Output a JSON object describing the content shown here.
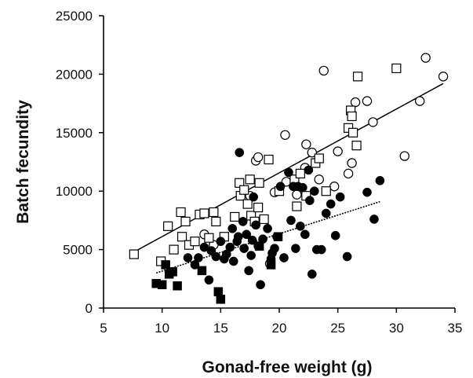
{
  "chart_data": {
    "type": "scatter",
    "title": "",
    "xlabel": "Gonad-free weight (g)",
    "ylabel": "Batch fecundity",
    "xlim": [
      5,
      35
    ],
    "ylim": [
      0,
      25000
    ],
    "xticks": [
      5,
      10,
      15,
      20,
      25,
      30,
      35
    ],
    "yticks": [
      0,
      5000,
      10000,
      15000,
      20000,
      25000
    ],
    "grid": false,
    "legend": "none",
    "series": [
      {
        "marker": "open-circle",
        "color": "#000000",
        "points": [
          [
            13.6,
            6300
          ],
          [
            14.4,
            5400
          ],
          [
            17.5,
            9600
          ],
          [
            18.0,
            12600
          ],
          [
            18.2,
            12900
          ],
          [
            19.2,
            3800
          ],
          [
            19.6,
            9900
          ],
          [
            20.5,
            14800
          ],
          [
            20.6,
            10800
          ],
          [
            22.2,
            12000
          ],
          [
            22.3,
            14000
          ],
          [
            22.8,
            13300
          ],
          [
            23.4,
            11000
          ],
          [
            23.8,
            20300
          ],
          [
            24.7,
            10400
          ],
          [
            25.0,
            13400
          ],
          [
            25.9,
            11500
          ],
          [
            26.2,
            12400
          ],
          [
            26.5,
            17600
          ],
          [
            27.5,
            17700
          ],
          [
            28.0,
            15900
          ],
          [
            30.7,
            13000
          ],
          [
            32.0,
            17700
          ],
          [
            32.5,
            21400
          ],
          [
            34.0,
            19800
          ],
          [
            21.5,
            9700
          ]
        ]
      },
      {
        "marker": "open-square",
        "color": "#000000",
        "points": [
          [
            7.6,
            4600
          ],
          [
            9.9,
            4000
          ],
          [
            10.5,
            7000
          ],
          [
            11.0,
            5000
          ],
          [
            11.6,
            8200
          ],
          [
            11.7,
            6100
          ],
          [
            12.0,
            7400
          ],
          [
            12.3,
            5400
          ],
          [
            12.8,
            5700
          ],
          [
            13.2,
            8000
          ],
          [
            13.6,
            8100
          ],
          [
            14.0,
            6000
          ],
          [
            14.4,
            8200
          ],
          [
            14.6,
            7400
          ],
          [
            15.3,
            6100
          ],
          [
            16.2,
            7800
          ],
          [
            16.6,
            10700
          ],
          [
            16.7,
            9600
          ],
          [
            17.0,
            10100
          ],
          [
            17.3,
            8900
          ],
          [
            17.5,
            11000
          ],
          [
            17.6,
            7900
          ],
          [
            18.2,
            8600
          ],
          [
            18.3,
            10700
          ],
          [
            18.7,
            7600
          ],
          [
            19.1,
            12700
          ],
          [
            20.0,
            10000
          ],
          [
            21.3,
            11000
          ],
          [
            21.5,
            8700
          ],
          [
            21.8,
            11500
          ],
          [
            22.3,
            9600
          ],
          [
            23.1,
            12400
          ],
          [
            23.4,
            12800
          ],
          [
            24.0,
            10000
          ],
          [
            25.9,
            15400
          ],
          [
            26.1,
            16900
          ],
          [
            26.2,
            16400
          ],
          [
            26.3,
            15000
          ],
          [
            26.6,
            13900
          ],
          [
            26.7,
            19800
          ],
          [
            30.0,
            20500
          ],
          [
            17.9,
            7400
          ]
        ]
      },
      {
        "marker": "filled-circle",
        "color": "#000000",
        "points": [
          [
            12.2,
            4300
          ],
          [
            12.8,
            3700
          ],
          [
            13.1,
            4300
          ],
          [
            13.6,
            5200
          ],
          [
            14.0,
            2400
          ],
          [
            14.2,
            4900
          ],
          [
            14.6,
            4400
          ],
          [
            15.0,
            5700
          ],
          [
            15.3,
            4200
          ],
          [
            15.5,
            4600
          ],
          [
            15.8,
            5200
          ],
          [
            16.1,
            4000
          ],
          [
            16.4,
            5700
          ],
          [
            16.5,
            6100
          ],
          [
            16.6,
            13300
          ],
          [
            16.9,
            7400
          ],
          [
            17.0,
            5100
          ],
          [
            17.2,
            6300
          ],
          [
            17.4,
            3200
          ],
          [
            17.6,
            4500
          ],
          [
            17.8,
            9500
          ],
          [
            18.0,
            7100
          ],
          [
            18.2,
            5300
          ],
          [
            18.4,
            2000
          ],
          [
            18.6,
            5900
          ],
          [
            19.0,
            6800
          ],
          [
            19.4,
            4700
          ],
          [
            19.6,
            5100
          ],
          [
            19.8,
            6100
          ],
          [
            20.1,
            10400
          ],
          [
            20.4,
            4300
          ],
          [
            20.8,
            11600
          ],
          [
            21.0,
            7500
          ],
          [
            21.2,
            10400
          ],
          [
            21.6,
            10400
          ],
          [
            21.8,
            7000
          ],
          [
            22.0,
            10300
          ],
          [
            22.2,
            6300
          ],
          [
            22.5,
            11800
          ],
          [
            22.6,
            9200
          ],
          [
            22.8,
            2900
          ],
          [
            23.0,
            10000
          ],
          [
            23.2,
            5000
          ],
          [
            23.6,
            5000
          ],
          [
            24.0,
            8100
          ],
          [
            24.4,
            8900
          ],
          [
            24.8,
            6200
          ],
          [
            25.2,
            9500
          ],
          [
            25.8,
            4400
          ],
          [
            27.5,
            9900
          ],
          [
            28.1,
            7600
          ],
          [
            28.6,
            10900
          ],
          [
            16.0,
            6800
          ],
          [
            19.3,
            4200
          ],
          [
            21.4,
            5100
          ],
          [
            17.7,
            5800
          ]
        ]
      },
      {
        "marker": "filled-square",
        "color": "#000000",
        "points": [
          [
            9.5,
            2100
          ],
          [
            10.0,
            2000
          ],
          [
            10.3,
            3700
          ],
          [
            10.6,
            2900
          ],
          [
            10.9,
            3100
          ],
          [
            11.3,
            1900
          ],
          [
            13.4,
            3200
          ],
          [
            14.8,
            1400
          ],
          [
            15.0,
            750
          ],
          [
            19.3,
            3700
          ],
          [
            19.9,
            6100
          ],
          [
            18.3,
            5300
          ]
        ]
      }
    ],
    "trendlines": [
      {
        "style": "solid",
        "color": "#000000",
        "x": [
          7.6,
          34.0
        ],
        "y": [
          4800,
          19200
        ]
      },
      {
        "style": "dotted",
        "color": "#000000",
        "x": [
          9.5,
          28.6
        ],
        "y": [
          3000,
          9100
        ]
      }
    ]
  }
}
